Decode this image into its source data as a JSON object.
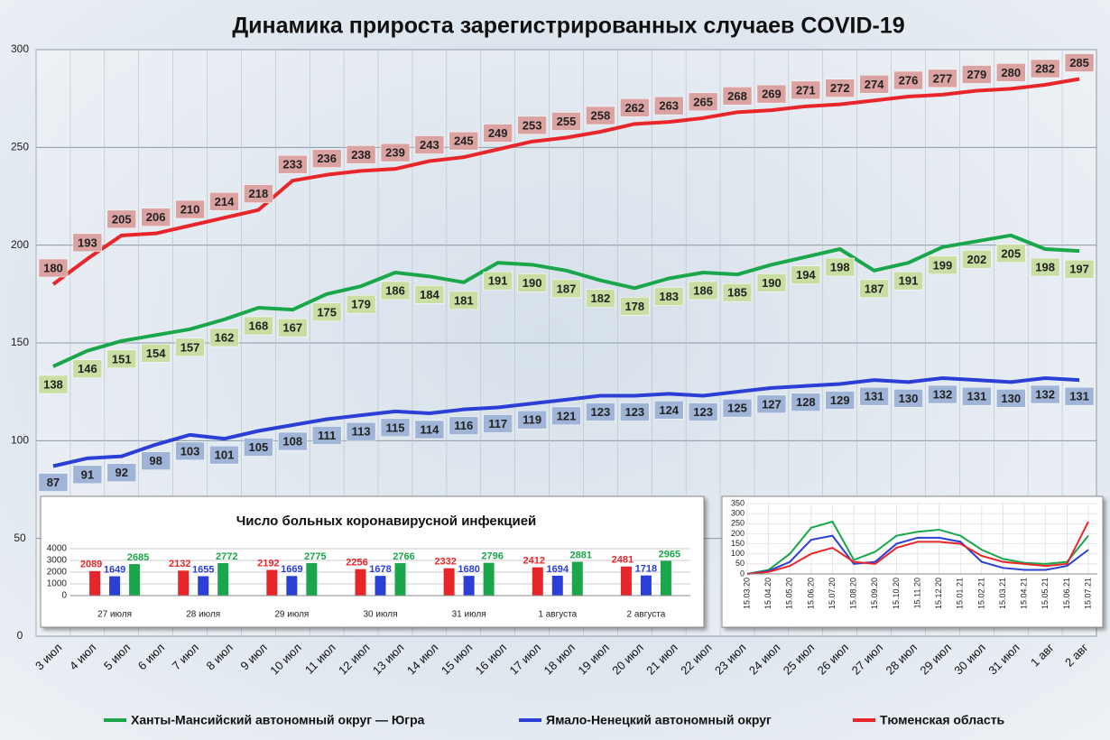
{
  "chart_data": [
    {
      "type": "line",
      "title": "Динамика прироста зарегистрированных случаев COVID-19",
      "categories": [
        "3 июл",
        "4 июл",
        "5 июл",
        "6 июл",
        "7 июл",
        "8 июл",
        "9 июл",
        "10 июл",
        "11 июл",
        "12 июл",
        "13 июл",
        "14 июл",
        "15 июл",
        "16 июл",
        "17 июл",
        "18 июл",
        "19 июл",
        "20 июл",
        "21 июл",
        "22 июл",
        "23 июл",
        "24 июл",
        "25 июл",
        "26 июл",
        "27 июл",
        "28 июл",
        "29 июл",
        "30 июл",
        "31 июл",
        "1 авг",
        "2 авг"
      ],
      "series": [
        {
          "name": "Ханты-Мансийский автономный округ — Югра",
          "color": "#1aa64a",
          "label_color": "#c9dea2",
          "values": [
            138,
            146,
            151,
            154,
            157,
            162,
            168,
            167,
            175,
            179,
            186,
            184,
            181,
            191,
            190,
            187,
            182,
            178,
            183,
            186,
            185,
            190,
            194,
            198,
            187,
            191,
            199,
            202,
            205,
            198,
            197
          ]
        },
        {
          "name": "Ямало-Ненецкий автономный округ",
          "color": "#2b3fd6",
          "label_color": "#9fb4d6",
          "values": [
            87,
            91,
            92,
            98,
            103,
            101,
            105,
            108,
            111,
            113,
            115,
            114,
            116,
            117,
            119,
            121,
            123,
            123,
            124,
            123,
            125,
            127,
            128,
            129,
            131,
            130,
            132,
            131,
            130,
            132,
            131
          ]
        },
        {
          "name": "Тюменская область",
          "color": "#e8262a",
          "label_color": "#dba2a2",
          "values": [
            180,
            193,
            205,
            206,
            210,
            214,
            218,
            233,
            236,
            238,
            239,
            243,
            245,
            249,
            253,
            255,
            258,
            262,
            263,
            265,
            268,
            269,
            271,
            272,
            274,
            276,
            277,
            279,
            280,
            282,
            285
          ]
        }
      ],
      "ylim": [
        0,
        300
      ],
      "yticks": [
        0,
        50,
        100,
        150,
        200,
        250,
        300
      ],
      "grid": true,
      "legend": "bottom"
    },
    {
      "type": "bar",
      "title": "Число больных коронавирусной инфекцией",
      "categories": [
        "27 июля",
        "28 июля",
        "29 июля",
        "30 июля",
        "31 июля",
        "1 августа",
        "2 августа"
      ],
      "series": [
        {
          "color": "#e8262a",
          "values": [
            2089,
            2132,
            2192,
            2256,
            2332,
            2412,
            2481
          ]
        },
        {
          "color": "#2b3fd6",
          "values": [
            1649,
            1655,
            1669,
            1678,
            1680,
            1694,
            1718
          ]
        },
        {
          "color": "#1aa64a",
          "values": [
            2685,
            2772,
            2775,
            2766,
            2796,
            2881,
            2965
          ]
        }
      ],
      "ylim": [
        0,
        4000
      ],
      "yticks": [
        0,
        1000,
        2000,
        3000,
        4000
      ],
      "grid": true
    },
    {
      "type": "line",
      "x": [
        "15.03.20",
        "15.04.20",
        "15.05.20",
        "15.06.20",
        "15.07.20",
        "15.08.20",
        "15.09.20",
        "15.10.20",
        "15.11.20",
        "15.12.20",
        "15.01.21",
        "15.02.21",
        "15.03.21",
        "15.04.21",
        "15.05.21",
        "15.06.21",
        "15.07.21"
      ],
      "series": [
        {
          "color": "#1aa64a",
          "values": [
            0,
            20,
            100,
            230,
            260,
            70,
            110,
            190,
            210,
            220,
            190,
            120,
            75,
            55,
            50,
            60,
            190
          ]
        },
        {
          "color": "#2b3fd6",
          "values": [
            0,
            15,
            60,
            170,
            190,
            50,
            60,
            150,
            180,
            180,
            160,
            60,
            30,
            20,
            20,
            40,
            120
          ]
        },
        {
          "color": "#e8262a",
          "values": [
            0,
            10,
            40,
            100,
            130,
            60,
            50,
            130,
            160,
            160,
            150,
            90,
            60,
            50,
            40,
            50,
            260
          ]
        }
      ],
      "ylim": [
        0,
        350
      ],
      "yticks": [
        0,
        50,
        100,
        150,
        200,
        250,
        300,
        350
      ],
      "grid": true
    }
  ]
}
